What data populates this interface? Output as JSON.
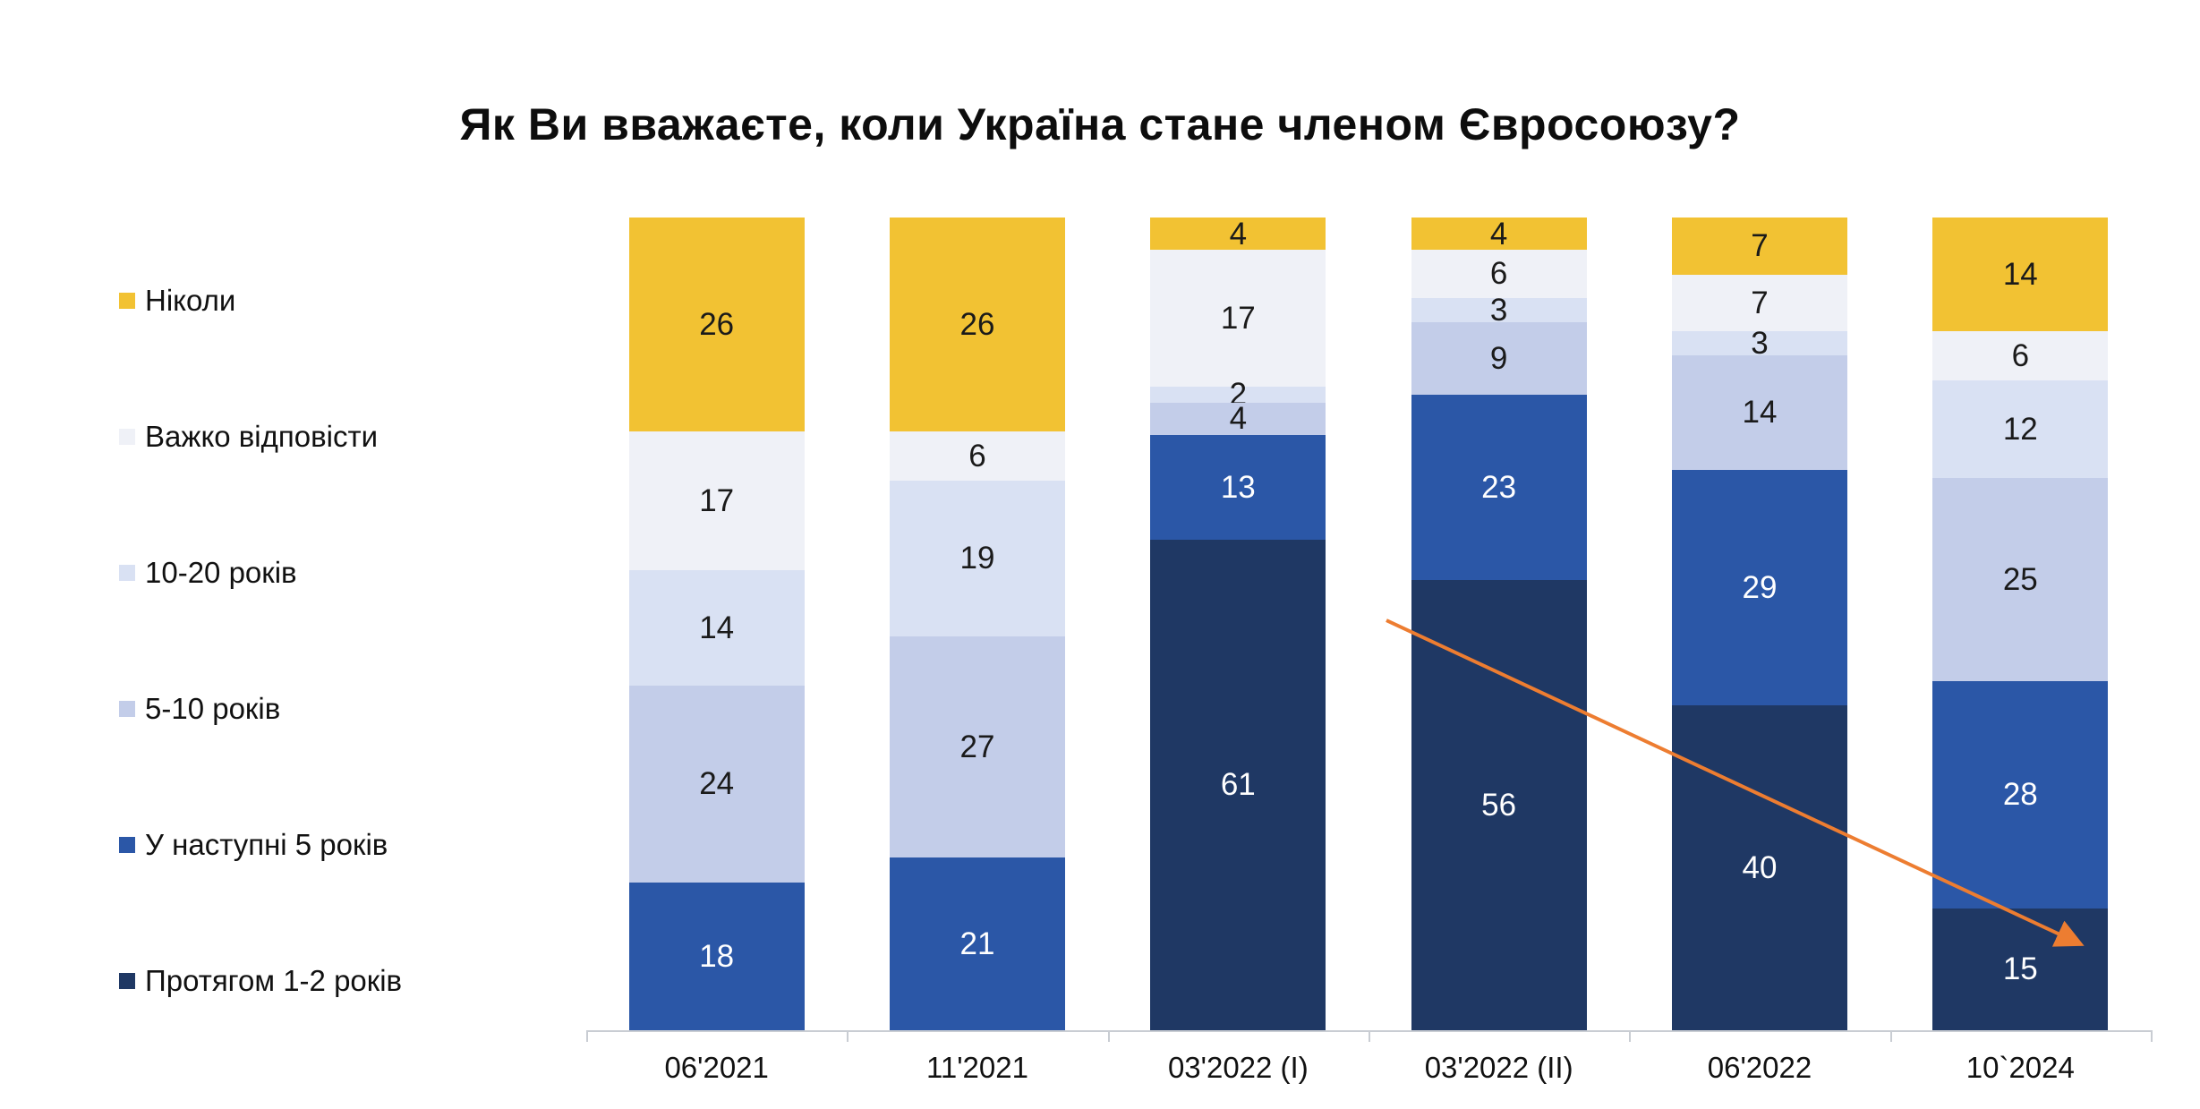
{
  "title": "Як Ви вважаєте, коли Україна стане членом Євросоюзу?",
  "colors": {
    "never": "#F2C233",
    "hard_to_answer": "#EFF1F7",
    "years_10_20": "#D9E1F3",
    "years_5_10": "#C3CDE9",
    "next_5_years": "#2B57A7",
    "within_1_2_years": "#1F3864",
    "arrow": "#ED7D31",
    "axis": "#C9CDD3"
  },
  "legend": [
    {
      "label": "Ніколи",
      "color": "#F2C233"
    },
    {
      "label": "Важко відповісти",
      "color": "#EFF1F7"
    },
    {
      "label": "10-20 років",
      "color": "#D9E1F3"
    },
    {
      "label": "5-10 років",
      "color": "#C3CDE9"
    },
    {
      "label": "У наступні 5 років",
      "color": "#2B57A7"
    },
    {
      "label": "Протягом 1-2 років",
      "color": "#1F3864"
    }
  ],
  "chart_data": {
    "type": "bar",
    "subtype": "stacked-100-percent-column",
    "title": "Як Ви вважаєте, коли Україна стане членом Євросоюзу?",
    "categories": [
      "06'2021",
      "11'2021",
      "03'2022 (I)",
      "03'2022 (II)",
      "06'2022",
      "10`2024"
    ],
    "series": [
      {
        "name": "Протягом 1-2 років",
        "color": "#1F3864",
        "text_color": "#FFFFFF",
        "values": [
          null,
          null,
          61,
          56,
          40,
          15
        ]
      },
      {
        "name": "У наступні 5 років",
        "color": "#2B57A7",
        "text_color": "#FFFFFF",
        "values": [
          18,
          21,
          13,
          23,
          29,
          28
        ]
      },
      {
        "name": "5-10 років",
        "color": "#C3CDE9",
        "text_color": "#1a1a1a",
        "values": [
          24,
          27,
          4,
          9,
          14,
          25
        ]
      },
      {
        "name": "10-20 років",
        "color": "#D9E1F3",
        "text_color": "#1a1a1a",
        "values": [
          14,
          19,
          2,
          3,
          3,
          12
        ]
      },
      {
        "name": "Важко відповісти",
        "color": "#EFF1F7",
        "text_color": "#1a1a1a",
        "values": [
          17,
          6,
          17,
          6,
          7,
          6
        ]
      },
      {
        "name": "Ніколи",
        "color": "#F2C233",
        "text_color": "#1a1a1a",
        "values": [
          26,
          26,
          4,
          4,
          7,
          14
        ]
      }
    ],
    "ylim": [
      0,
      100
    ],
    "grid": false,
    "legend_position": "left",
    "annotation": {
      "type": "trend-arrow",
      "direction": "down-right",
      "color": "#ED7D31"
    }
  }
}
